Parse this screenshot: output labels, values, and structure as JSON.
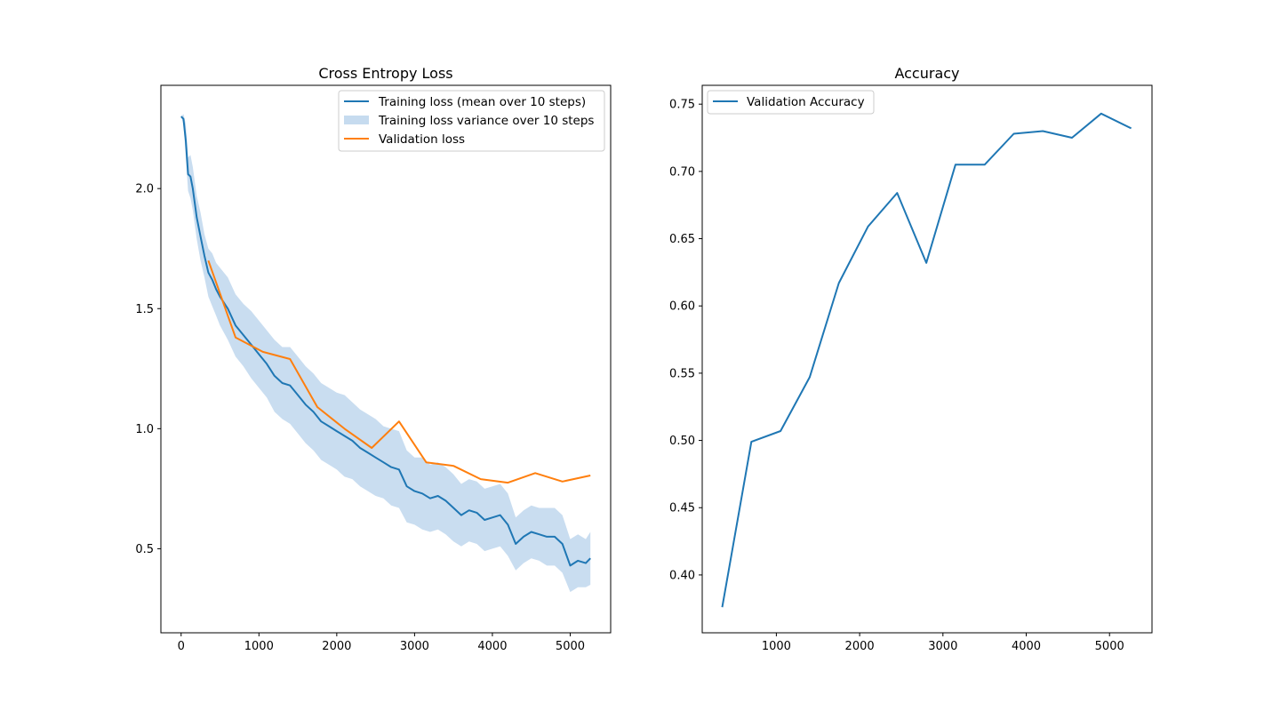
{
  "colors": {
    "blue": "#1f77b4",
    "orange": "#ff7f0e",
    "band": "#c6dbef"
  },
  "chart_data": [
    {
      "type": "line",
      "title": "Cross Entropy Loss",
      "xlabel": "",
      "ylabel": "",
      "xlim": [
        -260,
        5520
      ],
      "ylim": [
        0.15,
        2.43
      ],
      "xticks": [
        0,
        1000,
        2000,
        3000,
        4000,
        5000
      ],
      "xtick_labels": [
        "0",
        "1000",
        "2000",
        "3000",
        "4000",
        "5000"
      ],
      "yticks": [
        0.5,
        1.0,
        1.5,
        2.0
      ],
      "ytick_labels": [
        "0.5",
        "1.0",
        "1.5",
        "2.0"
      ],
      "grid": false,
      "legend_position": "upper-right",
      "legend": [
        "Training loss (mean over 10 steps)",
        "Training loss variance over 10 steps",
        "Validation loss"
      ],
      "series": [
        {
          "name": "Training loss (mean over 10 steps)",
          "kind": "line",
          "color": "#1f77b4",
          "x": [
            0,
            30,
            60,
            90,
            120,
            150,
            200,
            250,
            300,
            350,
            400,
            450,
            500,
            600,
            700,
            800,
            900,
            1000,
            1100,
            1200,
            1300,
            1400,
            1500,
            1600,
            1700,
            1800,
            1900,
            2000,
            2100,
            2200,
            2300,
            2400,
            2500,
            2600,
            2700,
            2800,
            2900,
            3000,
            3100,
            3200,
            3300,
            3400,
            3500,
            3600,
            3700,
            3800,
            3900,
            4000,
            4100,
            4200,
            4300,
            4400,
            4500,
            4600,
            4700,
            4800,
            4900,
            5000,
            5100,
            5200,
            5260
          ],
          "y": [
            2.3,
            2.29,
            2.2,
            2.06,
            2.05,
            2.0,
            1.88,
            1.8,
            1.72,
            1.65,
            1.62,
            1.58,
            1.55,
            1.5,
            1.43,
            1.39,
            1.35,
            1.31,
            1.27,
            1.22,
            1.19,
            1.18,
            1.14,
            1.1,
            1.07,
            1.03,
            1.01,
            0.99,
            0.97,
            0.95,
            0.92,
            0.9,
            0.88,
            0.86,
            0.84,
            0.83,
            0.76,
            0.74,
            0.73,
            0.71,
            0.72,
            0.7,
            0.67,
            0.64,
            0.66,
            0.65,
            0.62,
            0.63,
            0.64,
            0.6,
            0.52,
            0.55,
            0.57,
            0.56,
            0.55,
            0.55,
            0.52,
            0.43,
            0.45,
            0.44,
            0.46
          ]
        },
        {
          "name": "Training loss variance over 10 steps",
          "kind": "band",
          "color": "#c6dbef",
          "x": [
            0,
            30,
            60,
            90,
            120,
            150,
            200,
            250,
            300,
            350,
            400,
            450,
            500,
            600,
            700,
            800,
            900,
            1000,
            1100,
            1200,
            1300,
            1400,
            1500,
            1600,
            1700,
            1800,
            1900,
            2000,
            2100,
            2200,
            2300,
            2400,
            2500,
            2600,
            2700,
            2800,
            2900,
            3000,
            3100,
            3200,
            3300,
            3400,
            3500,
            3600,
            3700,
            3800,
            3900,
            4000,
            4100,
            4200,
            4300,
            4400,
            4500,
            4600,
            4700,
            4800,
            4900,
            5000,
            5100,
            5200,
            5260
          ],
          "lower": [
            2.3,
            2.27,
            2.13,
            1.99,
            1.96,
            1.91,
            1.79,
            1.7,
            1.63,
            1.55,
            1.51,
            1.47,
            1.43,
            1.37,
            1.3,
            1.26,
            1.21,
            1.17,
            1.13,
            1.07,
            1.04,
            1.02,
            0.98,
            0.94,
            0.91,
            0.87,
            0.85,
            0.83,
            0.8,
            0.79,
            0.76,
            0.74,
            0.72,
            0.71,
            0.68,
            0.67,
            0.61,
            0.6,
            0.58,
            0.57,
            0.58,
            0.56,
            0.53,
            0.51,
            0.53,
            0.52,
            0.49,
            0.5,
            0.51,
            0.47,
            0.41,
            0.44,
            0.46,
            0.45,
            0.43,
            0.43,
            0.4,
            0.32,
            0.34,
            0.34,
            0.35
          ],
          "upper": [
            2.3,
            2.31,
            2.27,
            2.13,
            2.14,
            2.09,
            1.97,
            1.9,
            1.81,
            1.75,
            1.73,
            1.69,
            1.67,
            1.63,
            1.56,
            1.52,
            1.49,
            1.45,
            1.41,
            1.37,
            1.34,
            1.34,
            1.3,
            1.26,
            1.23,
            1.19,
            1.17,
            1.15,
            1.14,
            1.11,
            1.08,
            1.06,
            1.04,
            1.01,
            1.0,
            0.99,
            0.91,
            0.88,
            0.88,
            0.85,
            0.86,
            0.84,
            0.81,
            0.77,
            0.79,
            0.78,
            0.75,
            0.76,
            0.77,
            0.73,
            0.63,
            0.66,
            0.68,
            0.67,
            0.67,
            0.67,
            0.64,
            0.54,
            0.56,
            0.54,
            0.57
          ]
        },
        {
          "name": "Validation loss",
          "kind": "line",
          "color": "#ff7f0e",
          "x": [
            350,
            700,
            1050,
            1400,
            1750,
            2100,
            2450,
            2800,
            3150,
            3500,
            3850,
            4200,
            4550,
            4900,
            5260
          ],
          "y": [
            1.7,
            1.38,
            1.32,
            1.29,
            1.09,
            1.0,
            0.92,
            1.03,
            0.86,
            0.845,
            0.79,
            0.775,
            0.815,
            0.78,
            0.805
          ]
        }
      ]
    },
    {
      "type": "line",
      "title": "Accuracy",
      "xlabel": "",
      "ylabel": "",
      "xlim": [
        110,
        5510
      ],
      "ylim": [
        0.357,
        0.764
      ],
      "xticks": [
        1000,
        2000,
        3000,
        4000,
        5000
      ],
      "xtick_labels": [
        "1000",
        "2000",
        "3000",
        "4000",
        "5000"
      ],
      "yticks": [
        0.4,
        0.45,
        0.5,
        0.55,
        0.6,
        0.65,
        0.7,
        0.75
      ],
      "ytick_labels": [
        "0.40",
        "0.45",
        "0.50",
        "0.55",
        "0.60",
        "0.65",
        "0.70",
        "0.75"
      ],
      "grid": false,
      "legend_position": "upper-left",
      "legend": [
        "Validation Accuracy"
      ],
      "series": [
        {
          "name": "Validation Accuracy",
          "kind": "line",
          "color": "#1f77b4",
          "x": [
            350,
            700,
            1050,
            1400,
            1750,
            2100,
            2450,
            2800,
            3150,
            3500,
            3850,
            4200,
            4550,
            4900,
            5260
          ],
          "y": [
            0.376,
            0.499,
            0.507,
            0.547,
            0.617,
            0.659,
            0.684,
            0.632,
            0.705,
            0.705,
            0.728,
            0.73,
            0.725,
            0.743,
            0.732
          ]
        }
      ]
    }
  ]
}
